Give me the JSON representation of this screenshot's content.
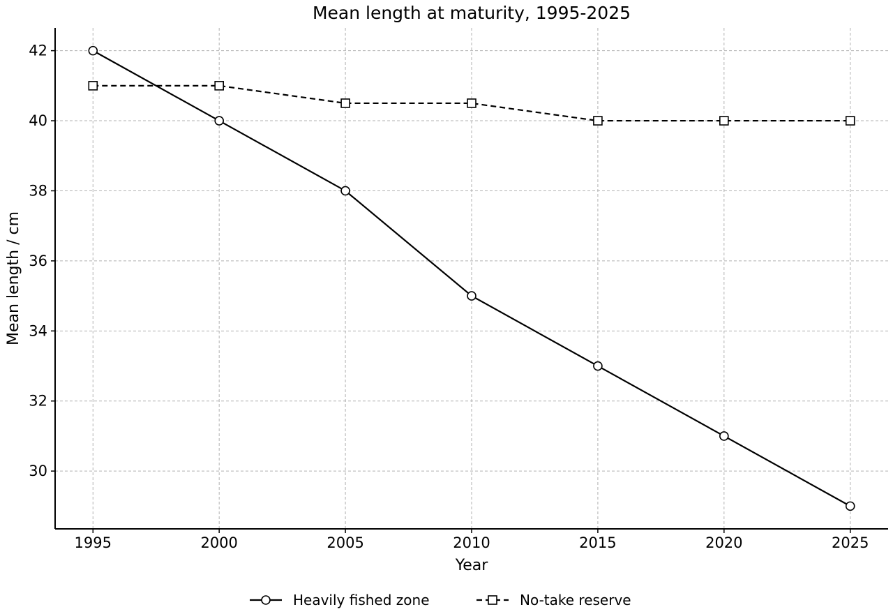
{
  "chart_data": {
    "type": "line",
    "title": "Mean length at maturity, 1995-2025",
    "xlabel": "Year",
    "ylabel": "Mean length / cm",
    "x": [
      1995,
      2000,
      2005,
      2010,
      2015,
      2020,
      2025
    ],
    "x_ticks": [
      "1995",
      "2000",
      "2005",
      "2010",
      "2015",
      "2020",
      "2025"
    ],
    "y_ticks": [
      "30",
      "32",
      "34",
      "36",
      "38",
      "40",
      "42"
    ],
    "xlim": [
      1993.5,
      2026.5
    ],
    "ylim": [
      28.35,
      42.65
    ],
    "grid": true,
    "legend_position": "bottom-center",
    "series": [
      {
        "name": "Heavily fished zone",
        "values": [
          42,
          40,
          38,
          35,
          33,
          31,
          29
        ],
        "marker": "circle",
        "line_style": "solid",
        "color": "#000000"
      },
      {
        "name": "No-take reserve",
        "values": [
          41,
          41,
          40.5,
          40.5,
          40,
          40,
          40
        ],
        "marker": "square",
        "line_style": "dashed",
        "color": "#000000"
      }
    ]
  }
}
